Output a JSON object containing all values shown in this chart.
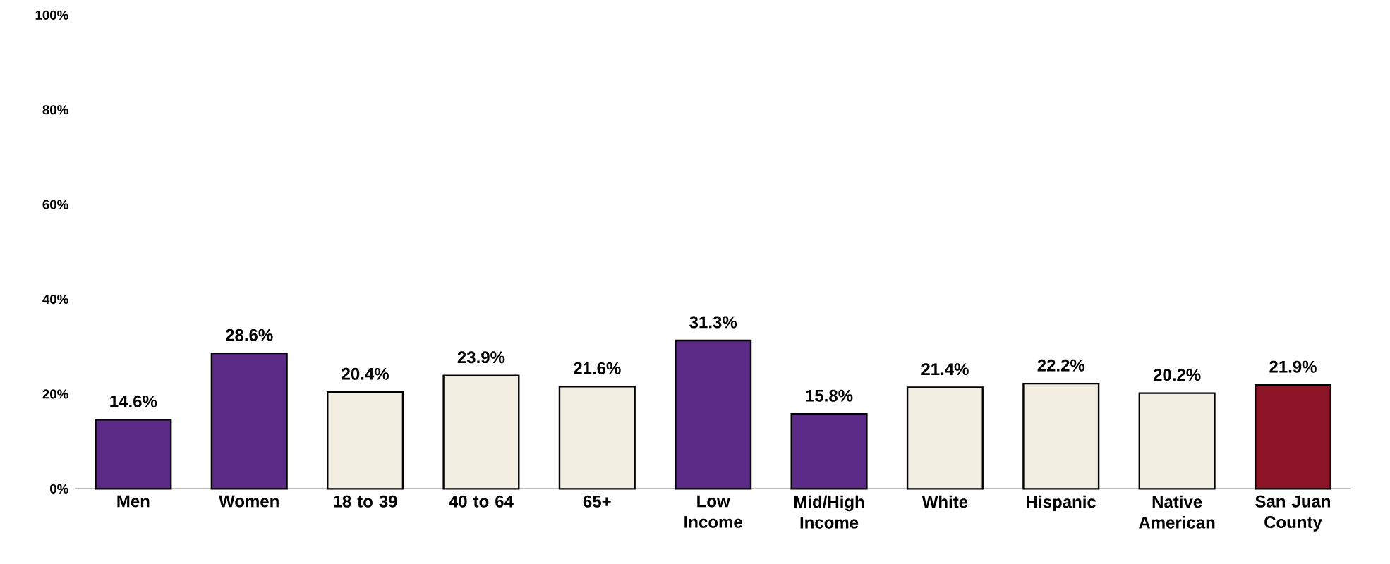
{
  "chart_data": {
    "type": "bar",
    "categories": [
      "Men",
      "Women",
      "18 to 39",
      "40 to 64",
      "65+",
      "Low Income",
      "Mid/High Income",
      "White",
      "Hispanic",
      "Native American",
      "San Juan County"
    ],
    "values": [
      14.6,
      28.6,
      20.4,
      23.9,
      21.6,
      31.3,
      15.8,
      21.4,
      22.2,
      20.2,
      21.9
    ],
    "colors": [
      "#5b2a86",
      "#5b2a86",
      "#f2eee2",
      "#f2eee2",
      "#f2eee2",
      "#5b2a86",
      "#5b2a86",
      "#f2eee2",
      "#f2eee2",
      "#f2eee2",
      "#8c1628"
    ],
    "value_labels": [
      "14.6%",
      "28.6%",
      "20.4%",
      "23.9%",
      "21.6%",
      "31.3%",
      "15.8%",
      "21.4%",
      "22.2%",
      "20.2%",
      "21.9%"
    ],
    "ylim": [
      0,
      100
    ],
    "yticks": [
      {
        "value": 0,
        "label": "0%"
      },
      {
        "value": 20,
        "label": "20%"
      },
      {
        "value": 40,
        "label": "40%"
      },
      {
        "value": 60,
        "label": "60%"
      },
      {
        "value": 80,
        "label": "80%"
      },
      {
        "value": 100,
        "label": "100%"
      }
    ],
    "grid": false
  }
}
